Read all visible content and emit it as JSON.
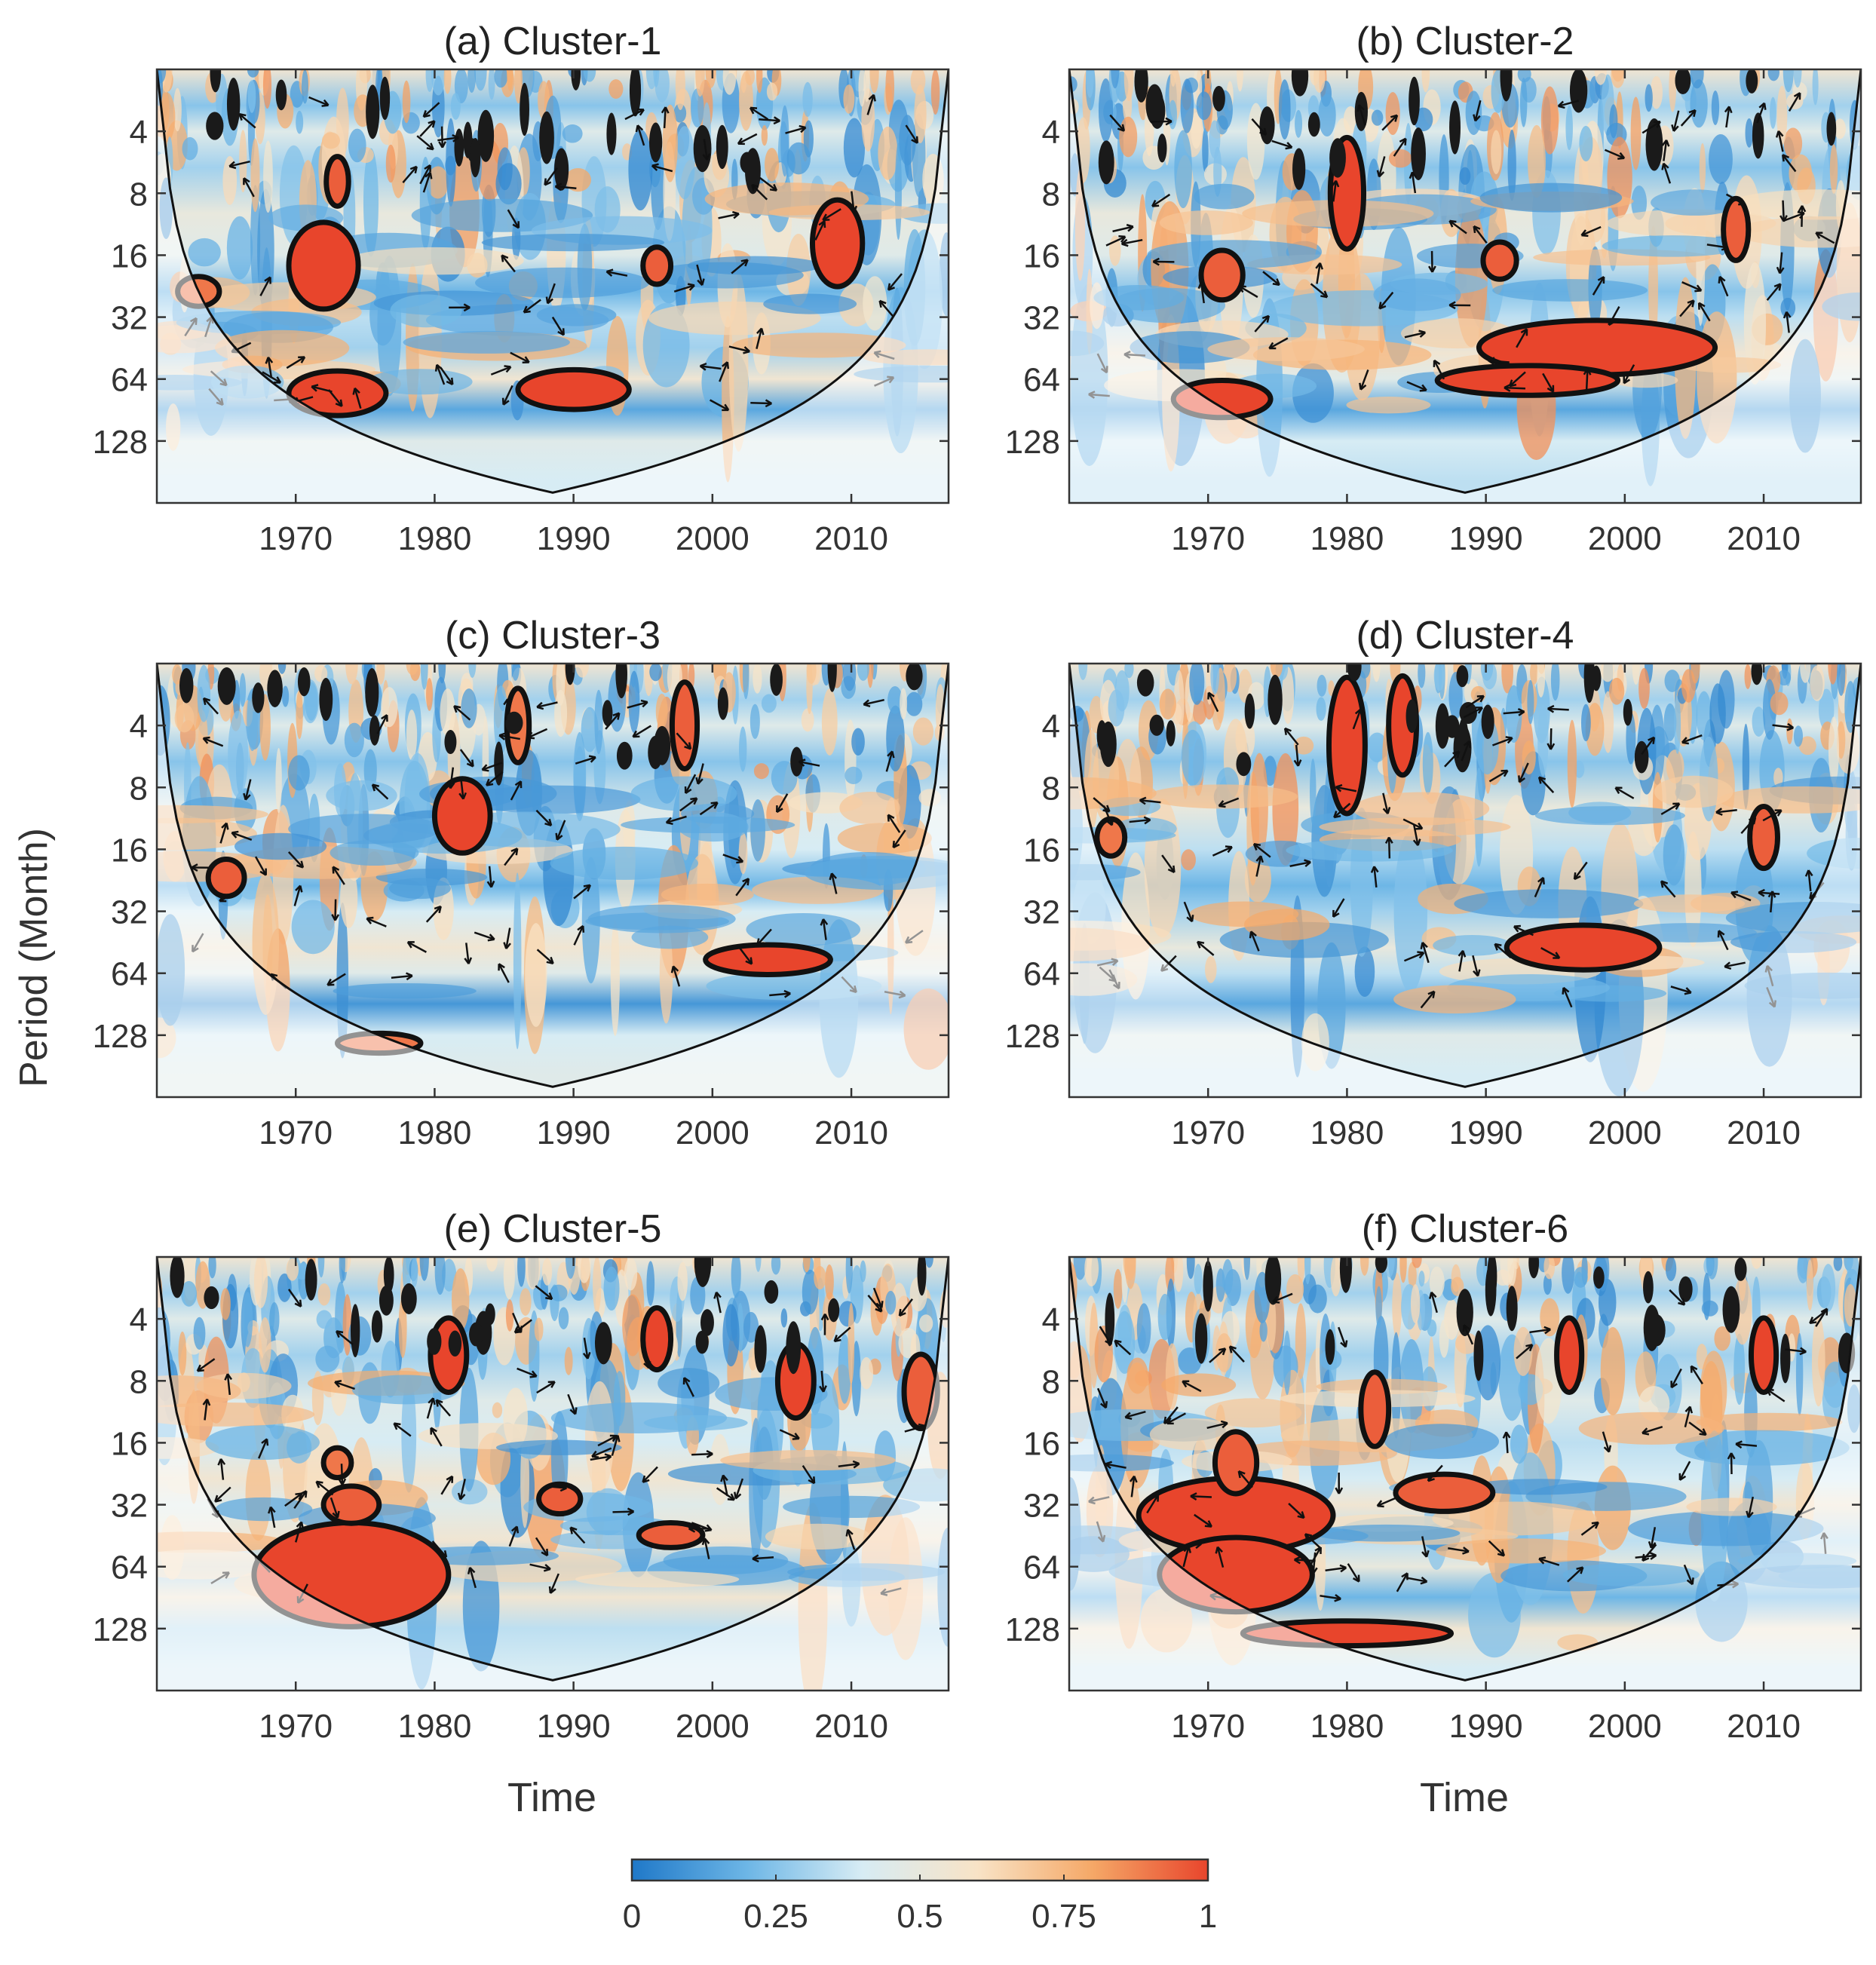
{
  "chart_data": {
    "type": "heatmap",
    "kind": "wavelet coherence",
    "shared": {
      "ylabel": "Period (Month)",
      "xlabel": "Time",
      "x_ticks": [
        1970,
        1980,
        1990,
        2000,
        2010
      ],
      "y_ticks": [
        4,
        8,
        16,
        32,
        64,
        128
      ],
      "xlim": [
        1960,
        2017
      ],
      "ylim_period": [
        2,
        256
      ],
      "y_scale": "log2",
      "colorbar": {
        "ticks": [
          0,
          0.25,
          0.5,
          0.75,
          1
        ],
        "labels": [
          "0",
          "0.25",
          "0.5",
          "0.75",
          "1"
        ],
        "range": [
          0,
          1
        ],
        "colors": [
          "#1f78c8",
          "#6db6e6",
          "#d7ecf4",
          "#f8e3c6",
          "#f5a867",
          "#e8452c"
        ]
      }
    },
    "panels": [
      {
        "title": "(a) Cluster-1",
        "bands": [
          [
            2,
            0.55
          ],
          [
            3,
            0.25
          ],
          [
            4,
            0.45
          ],
          [
            6,
            0.3
          ],
          [
            10,
            0.5
          ],
          [
            16,
            0.45
          ],
          [
            24,
            0.2
          ],
          [
            32,
            0.35
          ],
          [
            45,
            0.3
          ],
          [
            64,
            0.55
          ],
          [
            90,
            0.15
          ],
          [
            128,
            0.45
          ],
          [
            200,
            0.4
          ]
        ],
        "blobs": [
          {
            "x": 1972,
            "p": 18,
            "v": 1.0,
            "rx": 2.5,
            "ry": 0.35
          },
          {
            "x": 1973,
            "p": 75,
            "v": 1.0,
            "rx": 3.5,
            "ry": 0.18
          },
          {
            "x": 1990,
            "p": 72,
            "v": 1.0,
            "rx": 4.0,
            "ry": 0.16
          },
          {
            "x": 2009,
            "p": 14,
            "v": 1.0,
            "rx": 1.8,
            "ry": 0.35
          },
          {
            "x": 1996,
            "p": 18,
            "v": 0.95,
            "rx": 1.0,
            "ry": 0.15
          },
          {
            "x": 1963,
            "p": 24,
            "v": 0.9,
            "rx": 1.5,
            "ry": 0.12
          },
          {
            "x": 1973,
            "p": 7,
            "v": 0.95,
            "rx": 0.8,
            "ry": 0.2
          }
        ]
      },
      {
        "title": "(b) Cluster-2",
        "bands": [
          [
            2,
            0.55
          ],
          [
            3,
            0.3
          ],
          [
            4,
            0.45
          ],
          [
            6,
            0.25
          ],
          [
            10,
            0.5
          ],
          [
            16,
            0.45
          ],
          [
            24,
            0.25
          ],
          [
            32,
            0.35
          ],
          [
            48,
            0.55
          ],
          [
            64,
            0.45
          ],
          [
            90,
            0.15
          ],
          [
            128,
            0.4
          ],
          [
            200,
            0.35
          ]
        ],
        "blobs": [
          {
            "x": 1998,
            "p": 45,
            "v": 1.0,
            "rx": 8.5,
            "ry": 0.22
          },
          {
            "x": 1993,
            "p": 65,
            "v": 1.0,
            "rx": 6.5,
            "ry": 0.12
          },
          {
            "x": 1971,
            "p": 80,
            "v": 1.0,
            "rx": 3.5,
            "ry": 0.15
          },
          {
            "x": 1980,
            "p": 8,
            "v": 1.0,
            "rx": 1.2,
            "ry": 0.45
          },
          {
            "x": 1971,
            "p": 20,
            "v": 0.95,
            "rx": 1.5,
            "ry": 0.2
          },
          {
            "x": 1991,
            "p": 17,
            "v": 0.95,
            "rx": 1.2,
            "ry": 0.15
          },
          {
            "x": 2008,
            "p": 12,
            "v": 0.95,
            "rx": 0.9,
            "ry": 0.25
          }
        ]
      },
      {
        "title": "(c) Cluster-3",
        "bands": [
          [
            2,
            0.55
          ],
          [
            3,
            0.3
          ],
          [
            4,
            0.45
          ],
          [
            6,
            0.25
          ],
          [
            10,
            0.45
          ],
          [
            16,
            0.4
          ],
          [
            24,
            0.2
          ],
          [
            32,
            0.4
          ],
          [
            48,
            0.55
          ],
          [
            64,
            0.45
          ],
          [
            90,
            0.1
          ],
          [
            128,
            0.4
          ],
          [
            200,
            0.45
          ]
        ],
        "blobs": [
          {
            "x": 2004,
            "p": 55,
            "v": 1.0,
            "rx": 4.5,
            "ry": 0.12
          },
          {
            "x": 1982,
            "p": 11,
            "v": 1.0,
            "rx": 2.0,
            "ry": 0.3
          },
          {
            "x": 1965,
            "p": 22,
            "v": 0.95,
            "rx": 1.3,
            "ry": 0.15
          },
          {
            "x": 1976,
            "p": 140,
            "v": 0.9,
            "rx": 3.0,
            "ry": 0.08
          },
          {
            "x": 1998,
            "p": 4,
            "v": 0.95,
            "rx": 0.9,
            "ry": 0.35
          },
          {
            "x": 1986,
            "p": 4,
            "v": 0.9,
            "rx": 0.8,
            "ry": 0.3
          }
        ]
      },
      {
        "title": "(d) Cluster-4",
        "bands": [
          [
            2,
            0.55
          ],
          [
            3,
            0.3
          ],
          [
            4,
            0.45
          ],
          [
            6,
            0.25
          ],
          [
            10,
            0.5
          ],
          [
            16,
            0.35
          ],
          [
            24,
            0.2
          ],
          [
            32,
            0.3
          ],
          [
            48,
            0.5
          ],
          [
            64,
            0.35
          ],
          [
            90,
            0.15
          ],
          [
            128,
            0.45
          ],
          [
            200,
            0.4
          ]
        ],
        "blobs": [
          {
            "x": 1997,
            "p": 48,
            "v": 1.0,
            "rx": 5.5,
            "ry": 0.18
          },
          {
            "x": 1980,
            "p": 5,
            "v": 1.0,
            "rx": 1.3,
            "ry": 0.55
          },
          {
            "x": 1984,
            "p": 4,
            "v": 1.0,
            "rx": 1.0,
            "ry": 0.4
          },
          {
            "x": 2010,
            "p": 14,
            "v": 0.95,
            "rx": 1.0,
            "ry": 0.25
          },
          {
            "x": 1963,
            "p": 14,
            "v": 0.9,
            "rx": 1.0,
            "ry": 0.15
          }
        ]
      },
      {
        "title": "(e) Cluster-5",
        "bands": [
          [
            2,
            0.55
          ],
          [
            3,
            0.3
          ],
          [
            4,
            0.45
          ],
          [
            6,
            0.3
          ],
          [
            10,
            0.45
          ],
          [
            16,
            0.4
          ],
          [
            24,
            0.55
          ],
          [
            32,
            0.45
          ],
          [
            48,
            0.55
          ],
          [
            64,
            0.3
          ],
          [
            90,
            0.55
          ],
          [
            128,
            0.35
          ],
          [
            200,
            0.4
          ]
        ],
        "blobs": [
          {
            "x": 1974,
            "p": 70,
            "v": 1.0,
            "rx": 7.0,
            "ry": 0.42
          },
          {
            "x": 1974,
            "p": 32,
            "v": 0.95,
            "rx": 2.0,
            "ry": 0.15
          },
          {
            "x": 1997,
            "p": 45,
            "v": 0.95,
            "rx": 2.3,
            "ry": 0.1
          },
          {
            "x": 1989,
            "p": 30,
            "v": 0.95,
            "rx": 1.5,
            "ry": 0.12
          },
          {
            "x": 2006,
            "p": 8,
            "v": 1.0,
            "rx": 1.3,
            "ry": 0.3
          },
          {
            "x": 1981,
            "p": 6,
            "v": 1.0,
            "rx": 1.3,
            "ry": 0.3
          },
          {
            "x": 1996,
            "p": 5,
            "v": 1.0,
            "rx": 1.0,
            "ry": 0.25
          },
          {
            "x": 2015,
            "p": 9,
            "v": 0.95,
            "rx": 1.2,
            "ry": 0.3
          },
          {
            "x": 1973,
            "p": 20,
            "v": 0.9,
            "rx": 1.0,
            "ry": 0.12
          }
        ]
      },
      {
        "title": "(f) Cluster-6",
        "bands": [
          [
            2,
            0.55
          ],
          [
            3,
            0.3
          ],
          [
            4,
            0.45
          ],
          [
            6,
            0.3
          ],
          [
            10,
            0.45
          ],
          [
            16,
            0.35
          ],
          [
            24,
            0.4
          ],
          [
            32,
            0.55
          ],
          [
            48,
            0.35
          ],
          [
            64,
            0.5
          ],
          [
            90,
            0.2
          ],
          [
            128,
            0.55
          ],
          [
            200,
            0.4
          ]
        ],
        "blobs": [
          {
            "x": 1972,
            "p": 36,
            "v": 1.0,
            "rx": 7.0,
            "ry": 0.3
          },
          {
            "x": 1972,
            "p": 70,
            "v": 1.0,
            "rx": 5.5,
            "ry": 0.3
          },
          {
            "x": 1980,
            "p": 135,
            "v": 1.0,
            "rx": 7.5,
            "ry": 0.1
          },
          {
            "x": 1987,
            "p": 28,
            "v": 0.95,
            "rx": 3.5,
            "ry": 0.15
          },
          {
            "x": 1972,
            "p": 20,
            "v": 0.95,
            "rx": 1.5,
            "ry": 0.25
          },
          {
            "x": 1982,
            "p": 11,
            "v": 0.95,
            "rx": 1.0,
            "ry": 0.3
          },
          {
            "x": 2010,
            "p": 6,
            "v": 1.0,
            "rx": 0.9,
            "ry": 0.3
          },
          {
            "x": 1996,
            "p": 6,
            "v": 1.0,
            "rx": 0.9,
            "ry": 0.3
          }
        ]
      }
    ]
  }
}
